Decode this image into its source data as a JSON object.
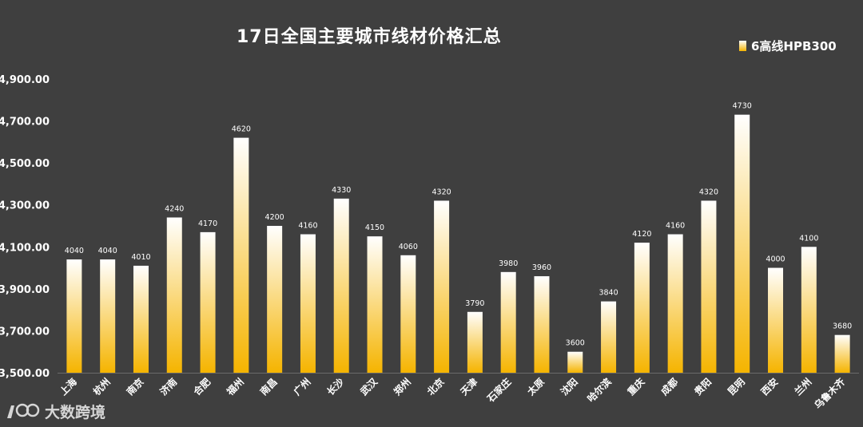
{
  "chart_data": {
    "type": "bar",
    "title": "17日全国主要城市线材价格汇总",
    "legend": {
      "position": "top-right",
      "label": "6高线HPB300"
    },
    "ylim": [
      3500,
      4900
    ],
    "yticks": [
      "3,500.00",
      "3,700.00",
      "3,900.00",
      "4,100.00",
      "4,300.00",
      "4,500.00",
      "4,700.00",
      "4,900.00"
    ],
    "ytick_values": [
      3500,
      3700,
      3900,
      4100,
      4300,
      4500,
      4700,
      4900
    ],
    "grid": false,
    "categories": [
      "上海",
      "杭州",
      "南京",
      "济南",
      "合肥",
      "福州",
      "南昌",
      "广州",
      "长沙",
      "武汉",
      "郑州",
      "北京",
      "天津",
      "石家庄",
      "太原",
      "沈阳",
      "哈尔滨",
      "重庆",
      "成都",
      "贵阳",
      "昆明",
      "西安",
      "兰州",
      "乌鲁木齐"
    ],
    "series": [
      {
        "name": "6高线HPB300",
        "values": [
          4040,
          4040,
          4010,
          4240,
          4170,
          4620,
          4200,
          4160,
          4330,
          4150,
          4060,
          4320,
          3790,
          3980,
          3960,
          3600,
          3840,
          4120,
          4160,
          4320,
          4730,
          4000,
          4100,
          3680
        ]
      }
    ],
    "colors": {
      "bar_top": "#ffffff",
      "bar_bottom": "#f5b400",
      "background": "#3f3f3f",
      "text": "#ffffff"
    }
  },
  "watermark": {
    "text": "大数跨境",
    "icon": "dashu-logo-icon"
  }
}
